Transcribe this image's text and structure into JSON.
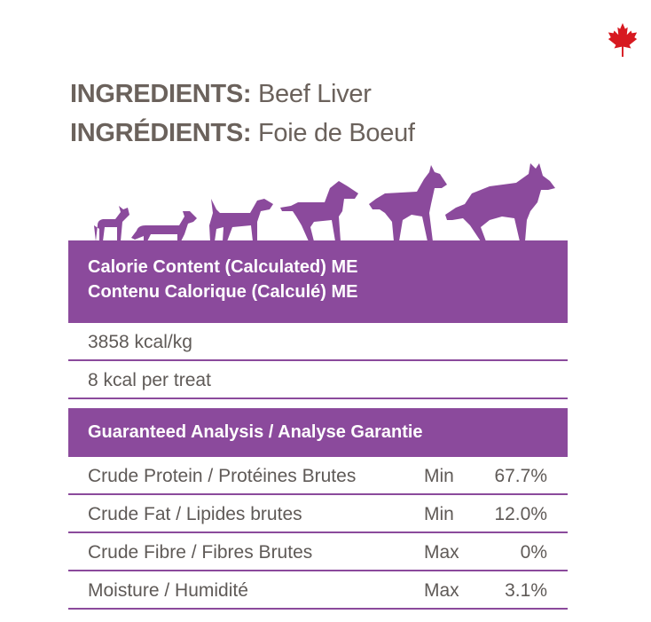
{
  "ingredients": [
    {
      "label": "INGREDIENTS:",
      "value": " Beef Liver"
    },
    {
      "label": "INGRÉDIENTS:",
      "value": " Foie de Boeuf"
    }
  ],
  "calorie": {
    "header_line1": "Calorie Content (Calculated) ME",
    "header_line2": "Contenu Calorique (Calculé) ME",
    "rows": [
      "3858 kcal/kg",
      "8 kcal per treat"
    ]
  },
  "analysis": {
    "header": "Guaranteed Analysis / Analyse Garantie",
    "rows": [
      {
        "name": "Crude Protein / Protéines Brutes",
        "qualifier": "Min",
        "value": "67.7%"
      },
      {
        "name": "Crude Fat / Lipides brutes",
        "qualifier": "Min",
        "value": "12.0%"
      },
      {
        "name": "Crude Fibre / Fibres Brutes",
        "qualifier": "Max",
        "value": "0%"
      },
      {
        "name": "Moisture / Humidité",
        "qualifier": "Max",
        "value": "3.1%"
      }
    ]
  },
  "colors": {
    "purple": "#8b4a9c",
    "text_gray": "#6b625c",
    "maple_red": "#d71920"
  },
  "icons": [
    "maple-leaf-icon",
    "dog-silhouettes-icon"
  ]
}
